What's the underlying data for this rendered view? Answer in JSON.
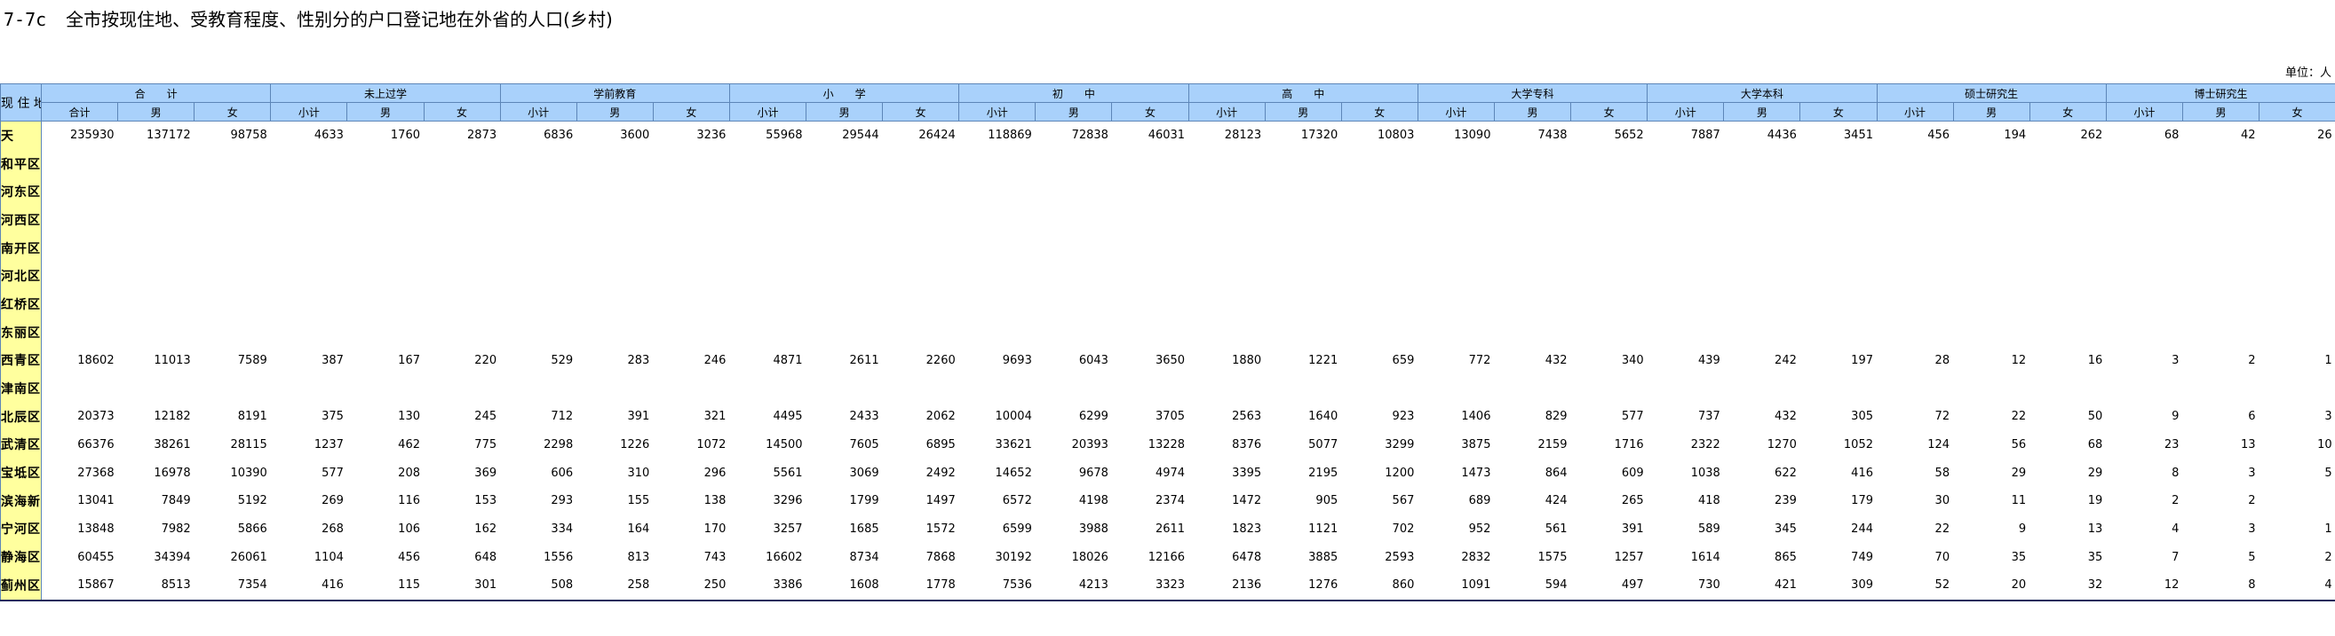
{
  "title": {
    "code": "7-7c",
    "text": "全市按现住地、受教育程度、性别分的户口登记地在外省的人口(乡村)"
  },
  "unit": "单位：人",
  "header": {
    "region_label": "现 住 地",
    "groups": [
      "合　　计",
      "未上过学",
      "学前教育",
      "小　　学",
      "初　　中",
      "高　　中",
      "大学专科",
      "大学本科",
      "硕士研究生",
      "博士研究生"
    ],
    "subcols": [
      "小计",
      "男",
      "女"
    ],
    "total_subcols": [
      "合计",
      "男",
      "女"
    ]
  },
  "rows": [
    {
      "region": "天　　津",
      "values": [
        "235930",
        "137172",
        "98758",
        "4633",
        "1760",
        "2873",
        "6836",
        "3600",
        "3236",
        "55968",
        "29544",
        "26424",
        "118869",
        "72838",
        "46031",
        "28123",
        "17320",
        "10803",
        "13090",
        "7438",
        "5652",
        "7887",
        "4436",
        "3451",
        "456",
        "194",
        "262",
        "68",
        "42",
        "26"
      ]
    },
    {
      "region": "和平区",
      "values": []
    },
    {
      "region": "河东区",
      "values": []
    },
    {
      "region": "河西区",
      "values": []
    },
    {
      "region": "南开区",
      "values": []
    },
    {
      "region": "河北区",
      "values": []
    },
    {
      "region": "红桥区",
      "values": []
    },
    {
      "region": "东丽区",
      "values": []
    },
    {
      "region": "西青区",
      "values": [
        "18602",
        "11013",
        "7589",
        "387",
        "167",
        "220",
        "529",
        "283",
        "246",
        "4871",
        "2611",
        "2260",
        "9693",
        "6043",
        "3650",
        "1880",
        "1221",
        "659",
        "772",
        "432",
        "340",
        "439",
        "242",
        "197",
        "28",
        "12",
        "16",
        "3",
        "2",
        "1"
      ]
    },
    {
      "region": "津南区",
      "values": []
    },
    {
      "region": "北辰区",
      "values": [
        "20373",
        "12182",
        "8191",
        "375",
        "130",
        "245",
        "712",
        "391",
        "321",
        "4495",
        "2433",
        "2062",
        "10004",
        "6299",
        "3705",
        "2563",
        "1640",
        "923",
        "1406",
        "829",
        "577",
        "737",
        "432",
        "305",
        "72",
        "22",
        "50",
        "9",
        "6",
        "3"
      ]
    },
    {
      "region": "武清区",
      "values": [
        "66376",
        "38261",
        "28115",
        "1237",
        "462",
        "775",
        "2298",
        "1226",
        "1072",
        "14500",
        "7605",
        "6895",
        "33621",
        "20393",
        "13228",
        "8376",
        "5077",
        "3299",
        "3875",
        "2159",
        "1716",
        "2322",
        "1270",
        "1052",
        "124",
        "56",
        "68",
        "23",
        "13",
        "10"
      ]
    },
    {
      "region": "宝坻区",
      "values": [
        "27368",
        "16978",
        "10390",
        "577",
        "208",
        "369",
        "606",
        "310",
        "296",
        "5561",
        "3069",
        "2492",
        "14652",
        "9678",
        "4974",
        "3395",
        "2195",
        "1200",
        "1473",
        "864",
        "609",
        "1038",
        "622",
        "416",
        "58",
        "29",
        "29",
        "8",
        "3",
        "5"
      ]
    },
    {
      "region": "滨海新区",
      "values": [
        "13041",
        "7849",
        "5192",
        "269",
        "116",
        "153",
        "293",
        "155",
        "138",
        "3296",
        "1799",
        "1497",
        "6572",
        "4198",
        "2374",
        "1472",
        "905",
        "567",
        "689",
        "424",
        "265",
        "418",
        "239",
        "179",
        "30",
        "11",
        "19",
        "2",
        "2",
        ""
      ]
    },
    {
      "region": "宁河区",
      "values": [
        "13848",
        "7982",
        "5866",
        "268",
        "106",
        "162",
        "334",
        "164",
        "170",
        "3257",
        "1685",
        "1572",
        "6599",
        "3988",
        "2611",
        "1823",
        "1121",
        "702",
        "952",
        "561",
        "391",
        "589",
        "345",
        "244",
        "22",
        "9",
        "13",
        "4",
        "3",
        "1"
      ]
    },
    {
      "region": "静海区",
      "values": [
        "60455",
        "34394",
        "26061",
        "1104",
        "456",
        "648",
        "1556",
        "813",
        "743",
        "16602",
        "8734",
        "7868",
        "30192",
        "18026",
        "12166",
        "6478",
        "3885",
        "2593",
        "2832",
        "1575",
        "1257",
        "1614",
        "865",
        "749",
        "70",
        "35",
        "35",
        "7",
        "5",
        "2"
      ]
    },
    {
      "region": "蓟州区",
      "values": [
        "15867",
        "8513",
        "7354",
        "416",
        "115",
        "301",
        "508",
        "258",
        "250",
        "3386",
        "1608",
        "1778",
        "7536",
        "4213",
        "3323",
        "2136",
        "1276",
        "860",
        "1091",
        "594",
        "497",
        "730",
        "421",
        "309",
        "52",
        "20",
        "32",
        "12",
        "8",
        "4"
      ]
    }
  ]
}
